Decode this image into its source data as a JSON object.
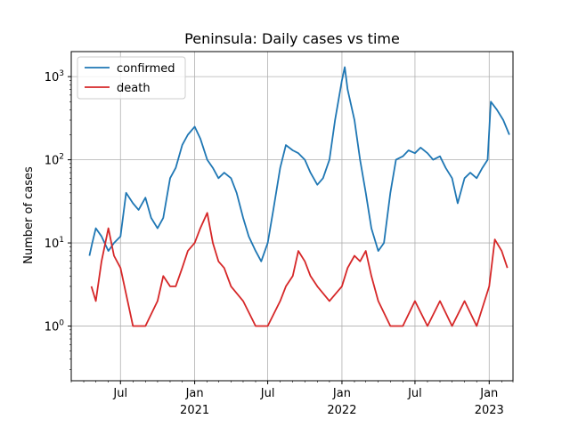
{
  "chart_data": {
    "type": "line",
    "title": "Peninsula: Daily  cases vs time",
    "xlabel": "",
    "ylabel": "Number of cases",
    "yscale": "log",
    "ylim": [
      0.22,
      2000
    ],
    "xlim": [
      "2020-03-01",
      "2023-03-01"
    ],
    "grid": true,
    "legend_position": "top-left",
    "x_ticks": [
      {
        "date": "2020-07-01",
        "label": "Jul",
        "year": ""
      },
      {
        "date": "2021-01-01",
        "label": "Jan",
        "year": "2021"
      },
      {
        "date": "2021-07-01",
        "label": "Jul",
        "year": ""
      },
      {
        "date": "2022-01-01",
        "label": "Jan",
        "year": "2022"
      },
      {
        "date": "2022-07-01",
        "label": "Jul",
        "year": ""
      },
      {
        "date": "2023-01-01",
        "label": "Jan",
        "year": "2023"
      }
    ],
    "y_ticks": [
      {
        "value": 1,
        "base": "10",
        "exp": "0"
      },
      {
        "value": 10,
        "base": "10",
        "exp": "1"
      },
      {
        "value": 100,
        "base": "10",
        "exp": "2"
      },
      {
        "value": 1000,
        "base": "10",
        "exp": "3"
      }
    ],
    "series": [
      {
        "name": "confirmed",
        "color": "#1f77b4",
        "points": [
          [
            "2020-04-15",
            7
          ],
          [
            "2020-04-22",
            10
          ],
          [
            "2020-05-01",
            15
          ],
          [
            "2020-05-15",
            12
          ],
          [
            "2020-06-01",
            8
          ],
          [
            "2020-06-15",
            10
          ],
          [
            "2020-07-01",
            12
          ],
          [
            "2020-07-15",
            40
          ],
          [
            "2020-08-01",
            30
          ],
          [
            "2020-08-15",
            25
          ],
          [
            "2020-09-01",
            35
          ],
          [
            "2020-09-15",
            20
          ],
          [
            "2020-10-01",
            15
          ],
          [
            "2020-10-15",
            20
          ],
          [
            "2020-11-01",
            60
          ],
          [
            "2020-11-15",
            80
          ],
          [
            "2020-12-01",
            150
          ],
          [
            "2020-12-15",
            200
          ],
          [
            "2021-01-01",
            250
          ],
          [
            "2021-01-15",
            180
          ],
          [
            "2021-02-01",
            100
          ],
          [
            "2021-02-15",
            80
          ],
          [
            "2021-03-01",
            60
          ],
          [
            "2021-03-15",
            70
          ],
          [
            "2021-04-01",
            60
          ],
          [
            "2021-04-15",
            40
          ],
          [
            "2021-05-01",
            20
          ],
          [
            "2021-05-15",
            12
          ],
          [
            "2021-06-01",
            8
          ],
          [
            "2021-06-15",
            6
          ],
          [
            "2021-07-01",
            10
          ],
          [
            "2021-07-15",
            25
          ],
          [
            "2021-08-01",
            80
          ],
          [
            "2021-08-15",
            150
          ],
          [
            "2021-09-01",
            130
          ],
          [
            "2021-09-15",
            120
          ],
          [
            "2021-10-01",
            100
          ],
          [
            "2021-10-15",
            70
          ],
          [
            "2021-11-01",
            50
          ],
          [
            "2021-11-15",
            60
          ],
          [
            "2021-12-01",
            100
          ],
          [
            "2021-12-15",
            300
          ],
          [
            "2022-01-01",
            900
          ],
          [
            "2022-01-08",
            1300
          ],
          [
            "2022-01-15",
            700
          ],
          [
            "2022-02-01",
            300
          ],
          [
            "2022-02-15",
            100
          ],
          [
            "2022-03-01",
            40
          ],
          [
            "2022-03-15",
            15
          ],
          [
            "2022-04-01",
            8
          ],
          [
            "2022-04-15",
            10
          ],
          [
            "2022-05-01",
            40
          ],
          [
            "2022-05-15",
            100
          ],
          [
            "2022-06-01",
            110
          ],
          [
            "2022-06-15",
            130
          ],
          [
            "2022-07-01",
            120
          ],
          [
            "2022-07-15",
            140
          ],
          [
            "2022-08-01",
            120
          ],
          [
            "2022-08-15",
            100
          ],
          [
            "2022-09-01",
            110
          ],
          [
            "2022-09-15",
            80
          ],
          [
            "2022-10-01",
            60
          ],
          [
            "2022-10-15",
            30
          ],
          [
            "2022-11-01",
            60
          ],
          [
            "2022-11-15",
            70
          ],
          [
            "2022-12-01",
            60
          ],
          [
            "2022-12-15",
            80
          ],
          [
            "2022-12-28",
            100
          ],
          [
            "2023-01-05",
            500
          ],
          [
            "2023-01-20",
            400
          ],
          [
            "2023-02-05",
            300
          ],
          [
            "2023-02-20",
            200
          ]
        ]
      },
      {
        "name": "death",
        "color": "#d62728",
        "points": [
          [
            "2020-04-20",
            3
          ],
          [
            "2020-05-01",
            2
          ],
          [
            "2020-05-15",
            6
          ],
          [
            "2020-06-01",
            15
          ],
          [
            "2020-06-15",
            7
          ],
          [
            "2020-07-01",
            5
          ],
          [
            "2020-08-01",
            1
          ],
          [
            "2020-09-01",
            1
          ],
          [
            "2020-10-01",
            2
          ],
          [
            "2020-10-15",
            4
          ],
          [
            "2020-11-01",
            3
          ],
          [
            "2020-11-15",
            3
          ],
          [
            "2020-12-01",
            5
          ],
          [
            "2020-12-15",
            8
          ],
          [
            "2021-01-01",
            10
          ],
          [
            "2021-01-15",
            15
          ],
          [
            "2021-02-01",
            23
          ],
          [
            "2021-02-15",
            10
          ],
          [
            "2021-03-01",
            6
          ],
          [
            "2021-03-15",
            5
          ],
          [
            "2021-04-01",
            3
          ],
          [
            "2021-05-01",
            2
          ],
          [
            "2021-06-01",
            1
          ],
          [
            "2021-07-01",
            1
          ],
          [
            "2021-08-01",
            2
          ],
          [
            "2021-08-15",
            3
          ],
          [
            "2021-09-01",
            4
          ],
          [
            "2021-09-15",
            8
          ],
          [
            "2021-10-01",
            6
          ],
          [
            "2021-10-15",
            4
          ],
          [
            "2021-11-01",
            3
          ],
          [
            "2021-12-01",
            2
          ],
          [
            "2022-01-01",
            3
          ],
          [
            "2022-01-15",
            5
          ],
          [
            "2022-02-01",
            7
          ],
          [
            "2022-02-15",
            6
          ],
          [
            "2022-03-01",
            8
          ],
          [
            "2022-03-15",
            4
          ],
          [
            "2022-04-01",
            2
          ],
          [
            "2022-05-01",
            1
          ],
          [
            "2022-06-01",
            1
          ],
          [
            "2022-07-01",
            2
          ],
          [
            "2022-08-01",
            1
          ],
          [
            "2022-09-01",
            2
          ],
          [
            "2022-10-01",
            1
          ],
          [
            "2022-11-01",
            2
          ],
          [
            "2022-12-01",
            1
          ],
          [
            "2023-01-01",
            3
          ],
          [
            "2023-01-15",
            11
          ],
          [
            "2023-02-01",
            8
          ],
          [
            "2023-02-15",
            5
          ]
        ]
      }
    ]
  }
}
